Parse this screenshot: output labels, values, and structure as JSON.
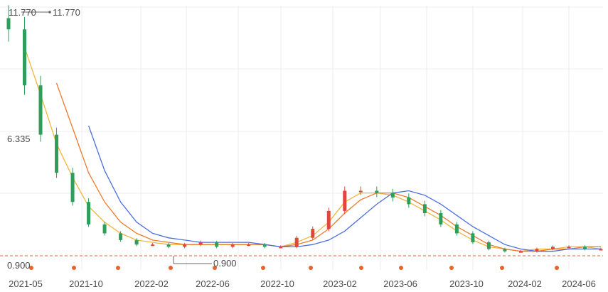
{
  "colors": {
    "up": "#e0473a",
    "down": "#2e9e5b",
    "ma_short": "#f0b63c",
    "ma_mid": "#ee7a2d",
    "ma_long": "#4a6ee0",
    "reference_line": "#e8642a",
    "grid": "#ececec",
    "event_dot": "#e8642a",
    "text": "#4a4a4a"
  },
  "chart_data": {
    "type": "candlestick",
    "x_tick_labels": [
      "2021-05",
      "2021-10",
      "2022-02",
      "2022-06",
      "2022-10",
      "2023-02",
      "2023-06",
      "2023-10",
      "2024-02",
      "2024-06"
    ],
    "y_axis_labels": [
      "11.770",
      "6.335",
      "0.900"
    ],
    "ylim": [
      0.9,
      11.77
    ],
    "grid": true,
    "annotations": {
      "max_price": "11.770",
      "min_price": "0.900"
    },
    "reference_line_value": 0.9,
    "series": [
      {
        "type": "candlestick",
        "periods": [
          "2021-05",
          "2021-06",
          "2021-07",
          "2021-08",
          "2021-09",
          "2021-10",
          "2021-11",
          "2021-12",
          "2022-01",
          "2022-02",
          "2022-03",
          "2022-04",
          "2022-05",
          "2022-06",
          "2022-07",
          "2022-08",
          "2022-09",
          "2022-10",
          "2022-11",
          "2022-12",
          "2023-01",
          "2023-02",
          "2023-03",
          "2023-04",
          "2023-05",
          "2023-06",
          "2023-07",
          "2023-08",
          "2023-09",
          "2023-10",
          "2023-11",
          "2023-12",
          "2024-01",
          "2024-02",
          "2024-03",
          "2024-04",
          "2024-05",
          "2024-06"
        ],
        "close": [
          11.0,
          8.5,
          6.3,
          4.6,
          3.3,
          2.3,
          1.9,
          1.6,
          1.4,
          1.4,
          1.3,
          1.4,
          1.5,
          1.3,
          1.4,
          1.4,
          1.3,
          1.3,
          1.7,
          2.1,
          2.9,
          3.8,
          3.8,
          3.7,
          3.5,
          3.2,
          2.8,
          2.3,
          1.9,
          1.5,
          1.2,
          1.1,
          1.1,
          1.2,
          1.3,
          1.3,
          1.2,
          1.2
        ]
      }
    ],
    "moving_averages": [
      {
        "name": "MA5",
        "values": [
          null,
          10.2,
          8.1,
          5.9,
          4.4,
          3.1,
          2.4,
          1.9,
          1.6,
          1.5,
          1.4,
          1.4,
          1.4,
          1.4,
          1.4,
          1.4,
          1.4,
          1.3,
          1.5,
          1.8,
          2.4,
          3.3,
          3.7,
          3.7,
          3.6,
          3.3,
          2.9,
          2.5,
          2.0,
          1.6,
          1.3,
          1.2,
          1.1,
          1.2,
          1.2,
          1.3,
          1.3,
          1.2
        ]
      },
      {
        "name": "MA10",
        "values": [
          null,
          null,
          null,
          8.6,
          6.6,
          4.6,
          3.3,
          2.4,
          1.9,
          1.6,
          1.5,
          1.4,
          1.4,
          1.4,
          1.4,
          1.4,
          1.4,
          1.3,
          1.4,
          1.6,
          2.1,
          2.8,
          3.4,
          3.7,
          3.7,
          3.5,
          3.1,
          2.7,
          2.2,
          1.8,
          1.4,
          1.2,
          1.1,
          1.1,
          1.2,
          1.2,
          1.3,
          1.3
        ]
      },
      {
        "name": "MA20",
        "values": [
          null,
          null,
          null,
          null,
          null,
          6.7,
          4.7,
          3.3,
          2.4,
          1.9,
          1.7,
          1.6,
          1.5,
          1.5,
          1.5,
          1.5,
          1.4,
          1.3,
          1.3,
          1.4,
          1.6,
          2.0,
          2.6,
          3.2,
          3.7,
          3.8,
          3.6,
          3.2,
          2.7,
          2.2,
          1.8,
          1.4,
          1.2,
          1.1,
          1.1,
          1.2,
          1.2,
          1.2
        ]
      }
    ],
    "event_markers_count": 12
  }
}
